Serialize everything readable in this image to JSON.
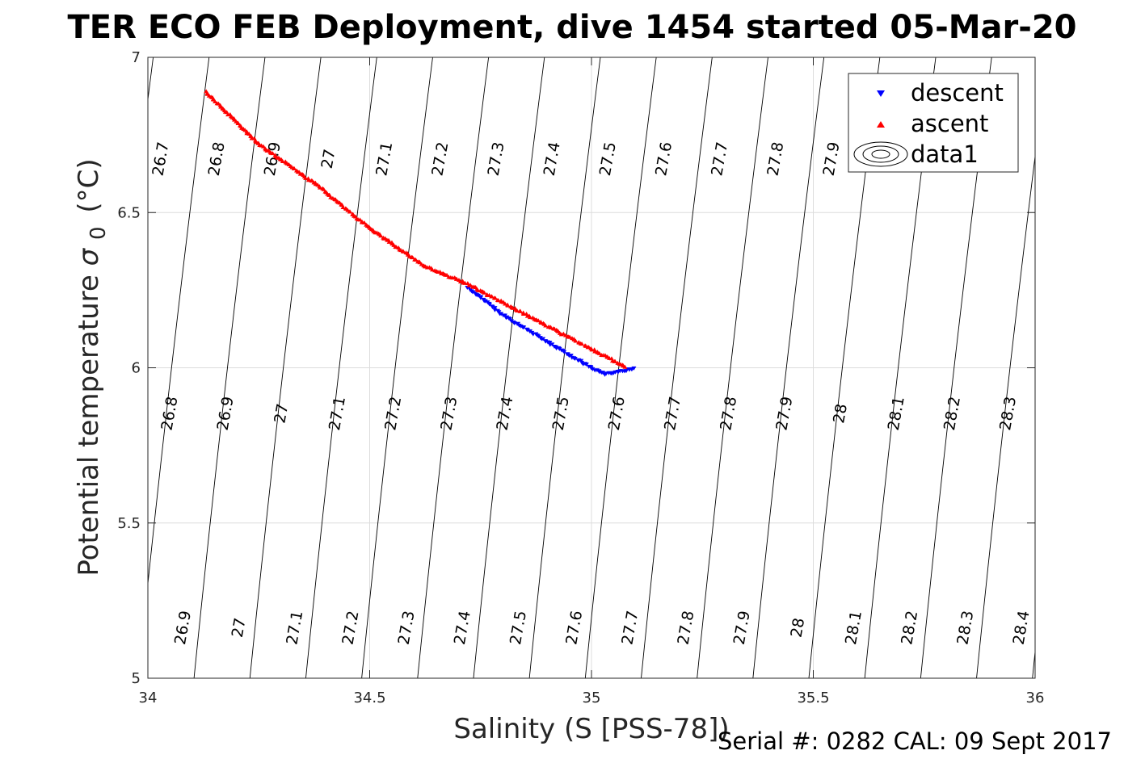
{
  "chart_data": {
    "type": "scatter",
    "title": "TER ECO FEB Deployment, dive 1454 started 05-Mar-20",
    "xlabel": "Salinity (S [PSS-78])",
    "ylabel_main": "Potential temperature",
    "ylabel_sigma": "σ",
    "ylabel_sub": "0",
    "ylabel_unit": "(°C)",
    "xlim": [
      34,
      36
    ],
    "ylim": [
      5,
      7
    ],
    "xticks": [
      "34",
      "34.5",
      "35",
      "35.5",
      "36"
    ],
    "yticks": [
      "5",
      "5.5",
      "6",
      "6.5",
      "7"
    ],
    "grid": true,
    "footer": "Serial #: 0282  CAL: 09 Sept 2017",
    "legend": {
      "position": "top-right",
      "entries": [
        {
          "label": "descent",
          "marker": "triangle-down",
          "color": "#0000ff"
        },
        {
          "label": "ascent",
          "marker": "triangle-up",
          "color": "#ff0000"
        },
        {
          "label": "data1",
          "marker": "contour",
          "color": "#000000"
        }
      ]
    },
    "contour_labels": {
      "top": [
        "26.7",
        "26.8",
        "26.9",
        "27",
        "27.1",
        "27.2",
        "27.3",
        "27.4",
        "27.5",
        "27.6",
        "27.7",
        "27.8",
        "27.9"
      ],
      "middle": [
        "26.8",
        "26.9",
        "27",
        "27.1",
        "27.2",
        "27.3",
        "27.4",
        "27.5",
        "27.6",
        "27.7",
        "27.8",
        "27.9",
        "28",
        "28.1",
        "28.2",
        "28.3"
      ],
      "bottom": [
        "26.9",
        "27",
        "27.1",
        "27.2",
        "27.3",
        "27.4",
        "27.5",
        "27.6",
        "27.7",
        "27.8",
        "27.9",
        "28",
        "28.1",
        "28.2",
        "28.3",
        "28.4"
      ]
    },
    "series": [
      {
        "name": "descent",
        "color": "#0000ff",
        "marker": "triangle-down",
        "x": [
          34.72,
          34.8,
          34.87,
          34.94,
          35.0,
          35.03,
          35.07,
          35.1
        ],
        "y": [
          6.26,
          6.17,
          6.11,
          6.05,
          6.0,
          5.98,
          5.99,
          6.0
        ]
      },
      {
        "name": "ascent",
        "color": "#ff0000",
        "marker": "triangle-up",
        "x": [
          34.13,
          34.25,
          34.38,
          34.5,
          34.62,
          34.72,
          35.08
        ],
        "y": [
          6.89,
          6.72,
          6.59,
          6.45,
          6.33,
          6.27,
          6.0
        ]
      }
    ]
  }
}
